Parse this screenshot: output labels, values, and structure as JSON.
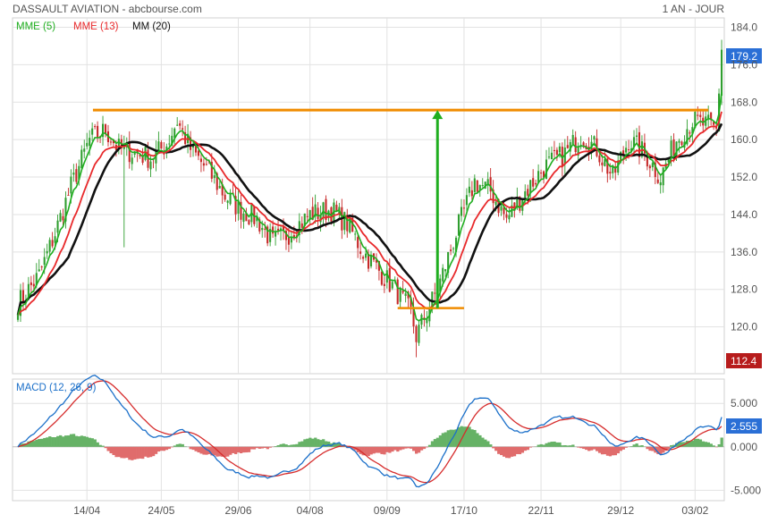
{
  "header": {
    "title": "DASSAULT AVIATION - abcbourse.com",
    "period": "1 AN - JOUR"
  },
  "legend": [
    {
      "label": "MME (5)",
      "color": "#1fae1f"
    },
    {
      "label": "MME (13)",
      "color": "#e8292b"
    },
    {
      "label": "MM (20)",
      "color": "#111111"
    }
  ],
  "colors": {
    "up_candle": "#2f9e2f",
    "down_candle": "#c62828",
    "mme5": "#1fae1f",
    "mme13": "#e8292b",
    "mm20": "#111111",
    "resistance": "#f08c00",
    "arrow": "#1fae1f",
    "grid": "#e2e2e2",
    "macd": "#1a6fc9",
    "signal": "#d62c2c",
    "hist_pos": "#66b266",
    "hist_neg": "#e06c6c",
    "badge_last": "#2a6fd6",
    "badge_low": "#b71c1c"
  },
  "chart_data": [
    {
      "type": "candlestick",
      "title": "DASSAULT AVIATION",
      "ylim": [
        110,
        186
      ],
      "yticks": [
        120.0,
        128.0,
        136.0,
        144.0,
        152.0,
        160.0,
        168.0,
        176.0,
        184.0
      ],
      "ytick_labels": [
        "120.0",
        "128.0",
        "136.0",
        "144.0",
        "152.0",
        "160.0",
        "168.0",
        "176.0",
        "184.0"
      ],
      "xticks": [
        "14/04",
        "24/05",
        "29/06",
        "04/08",
        "09/09",
        "17/10",
        "22/11",
        "29/12",
        "03/02"
      ],
      "last_value": "179.2",
      "low_value": "112.4",
      "close_anchors": [
        [
          0,
          125
        ],
        [
          8,
          131
        ],
        [
          14,
          140
        ],
        [
          20,
          150
        ],
        [
          27,
          160
        ],
        [
          33,
          162
        ],
        [
          38,
          158
        ],
        [
          45,
          157
        ],
        [
          50,
          156
        ],
        [
          56,
          159
        ],
        [
          60,
          164
        ],
        [
          65,
          158
        ],
        [
          72,
          153
        ],
        [
          78,
          148
        ],
        [
          84,
          145
        ],
        [
          90,
          143
        ],
        [
          96,
          138
        ],
        [
          102,
          140
        ],
        [
          110,
          144
        ],
        [
          118,
          145
        ],
        [
          124,
          142
        ],
        [
          130,
          136
        ],
        [
          136,
          132
        ],
        [
          142,
          128
        ],
        [
          148,
          123
        ],
        [
          150,
          118
        ],
        [
          153,
          122
        ],
        [
          158,
          128
        ],
        [
          165,
          140
        ],
        [
          172,
          151
        ],
        [
          178,
          149
        ],
        [
          184,
          143
        ],
        [
          190,
          148
        ],
        [
          198,
          154
        ],
        [
          206,
          157
        ],
        [
          212,
          161
        ],
        [
          218,
          158
        ],
        [
          224,
          152
        ],
        [
          230,
          160
        ],
        [
          236,
          157
        ],
        [
          242,
          152
        ],
        [
          248,
          160
        ],
        [
          254,
          164
        ],
        [
          260,
          163
        ],
        [
          263,
          162
        ],
        [
          265,
          179.2
        ]
      ],
      "resistance": {
        "level": 166.3,
        "from_index": 35,
        "to_index": 260
      },
      "support": {
        "level": 124.0,
        "from_index": 143,
        "to_index": 168
      },
      "arrow": {
        "index": 158,
        "from": 124.0,
        "to": 166.3
      }
    },
    {
      "type": "line",
      "title": "MACD (12, 26, 9)",
      "ylim": [
        -6.2,
        7.8
      ],
      "yticks": [
        5.0,
        0.0,
        -5.0
      ],
      "ytick_labels": [
        "5.000",
        "0.000",
        "-5.000"
      ],
      "last_value": "2.555"
    }
  ]
}
